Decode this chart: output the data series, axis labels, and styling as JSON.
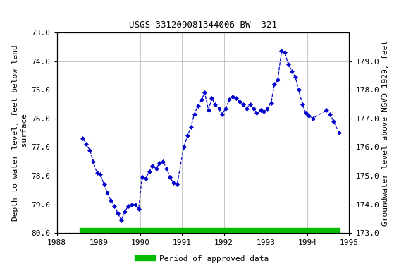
{
  "title": "USGS 331209081344006 BW- 321",
  "ylabel_left": "Depth to water level, feet below land\n surface",
  "ylabel_right": "Groundwater level above NGVD 1929, feet",
  "ylim_left": [
    80.0,
    73.0
  ],
  "ylim_right": [
    173.0,
    180.0
  ],
  "xlim": [
    1988.0,
    1995.0
  ],
  "yticks_left": [
    73.0,
    74.0,
    75.0,
    76.0,
    77.0,
    78.0,
    79.0,
    80.0
  ],
  "yticks_right": [
    173.0,
    174.0,
    175.0,
    176.0,
    177.0,
    178.0,
    179.0
  ],
  "xticks": [
    1988,
    1989,
    1990,
    1991,
    1992,
    1993,
    1994,
    1995
  ],
  "line_color": "#0000CC",
  "line_style": "--",
  "marker": "D",
  "marker_color": "#0000CC",
  "marker_size": 3,
  "grid_color": "#b0b0b0",
  "bg_color": "#ffffff",
  "approved_bar_color": "#00BB00",
  "approved_bar_x_start": 1988.55,
  "approved_bar_x_end": 1994.78,
  "approved_label": "Period of approved data",
  "title_fontsize": 9,
  "axis_label_fontsize": 8,
  "tick_fontsize": 8,
  "font_family": "monospace",
  "data_x": [
    1988.62,
    1988.7,
    1988.79,
    1988.87,
    1988.96,
    1989.04,
    1989.13,
    1989.21,
    1989.29,
    1989.38,
    1989.46,
    1989.54,
    1989.63,
    1989.71,
    1989.79,
    1989.88,
    1989.96,
    1990.04,
    1990.13,
    1990.21,
    1990.29,
    1990.38,
    1990.46,
    1990.54,
    1990.63,
    1990.71,
    1990.79,
    1990.88,
    1991.04,
    1991.13,
    1991.21,
    1991.29,
    1991.38,
    1991.46,
    1991.54,
    1991.63,
    1991.71,
    1991.79,
    1991.88,
    1991.96,
    1992.04,
    1992.13,
    1992.21,
    1992.29,
    1992.38,
    1992.46,
    1992.54,
    1992.63,
    1992.71,
    1992.79,
    1992.88,
    1992.96,
    1993.04,
    1993.13,
    1993.21,
    1993.29,
    1993.38,
    1993.46,
    1993.54,
    1993.63,
    1993.71,
    1993.79,
    1993.88,
    1993.96,
    1994.04,
    1994.13,
    1994.46,
    1994.54,
    1994.63,
    1994.75
  ],
  "data_y": [
    76.7,
    76.9,
    77.1,
    77.5,
    77.9,
    77.95,
    78.3,
    78.6,
    78.85,
    79.05,
    79.3,
    79.55,
    79.25,
    79.05,
    79.0,
    79.0,
    79.15,
    78.05,
    78.1,
    77.85,
    77.65,
    77.75,
    77.55,
    77.5,
    77.75,
    78.05,
    78.25,
    78.3,
    77.0,
    76.6,
    76.3,
    75.85,
    75.55,
    75.35,
    75.1,
    75.7,
    75.3,
    75.5,
    75.65,
    75.85,
    75.65,
    75.35,
    75.25,
    75.3,
    75.4,
    75.5,
    75.65,
    75.5,
    75.65,
    75.8,
    75.7,
    75.75,
    75.65,
    75.45,
    74.8,
    74.65,
    73.65,
    73.7,
    74.1,
    74.35,
    74.55,
    75.0,
    75.5,
    75.8,
    75.9,
    76.0,
    75.7,
    75.85,
    76.1,
    76.5
  ]
}
